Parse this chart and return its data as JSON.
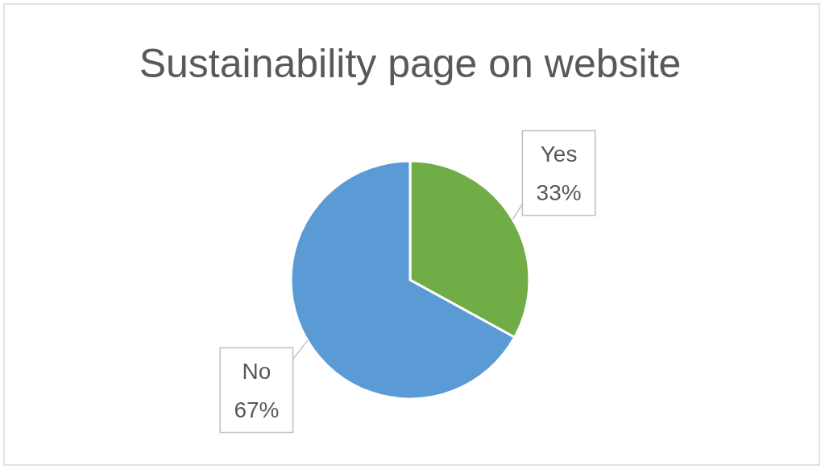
{
  "chart_data": {
    "type": "pie",
    "title": "Sustainability page on website",
    "categories": [
      "Yes",
      "No"
    ],
    "values": [
      33,
      67
    ],
    "colors": [
      "#70ad47",
      "#5b9bd5"
    ],
    "value_labels": [
      "33%",
      "67%"
    ]
  }
}
